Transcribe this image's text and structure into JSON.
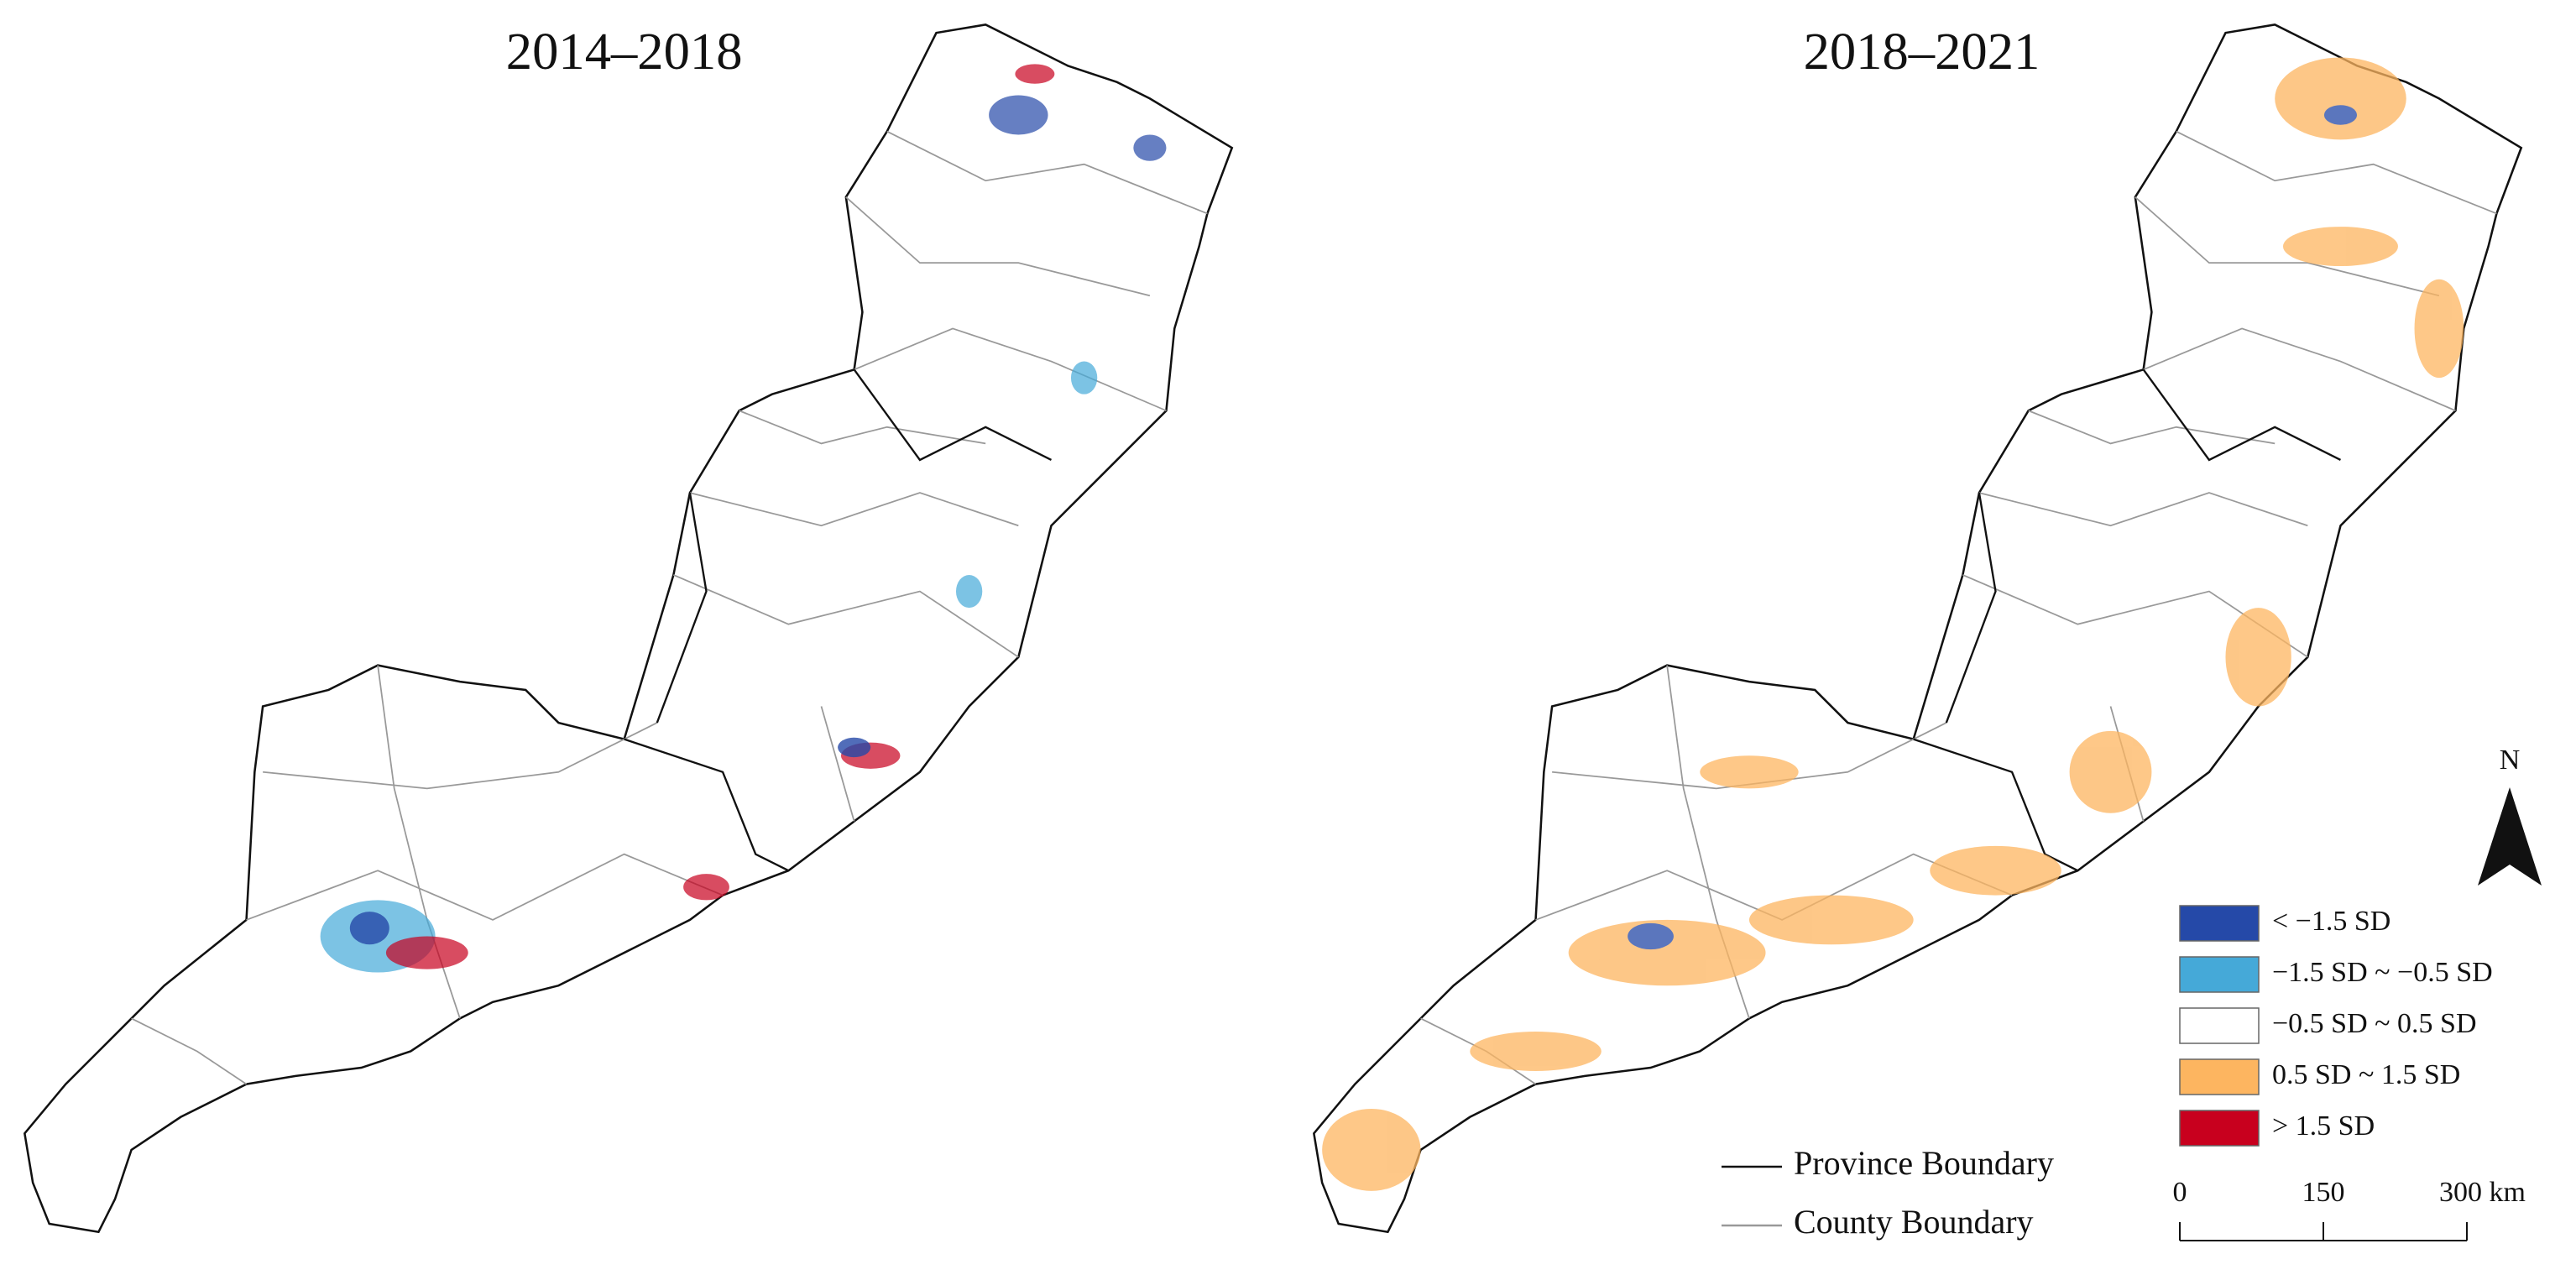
{
  "panels": [
    {
      "title": "2014–2018"
    },
    {
      "title": "2018–2021"
    }
  ],
  "north": "N",
  "legend": [
    {
      "label": "< −1.5 SD",
      "color": "#2549a8"
    },
    {
      "label": "−1.5 SD ~ −0.5 SD",
      "color": "#45a9d8"
    },
    {
      "label": "−0.5 SD ~ 0.5 SD",
      "color": "#ffffff"
    },
    {
      "label": "0.5 SD ~ 1.5 SD",
      "color": "#fdb560"
    },
    {
      "label": ">  1.5 SD",
      "color": "#c8001e"
    }
  ],
  "boundaries": [
    {
      "label": "Province Boundary"
    },
    {
      "label": "County Boundary"
    }
  ],
  "scale_bar": [
    "0",
    "150",
    "300 km"
  ]
}
